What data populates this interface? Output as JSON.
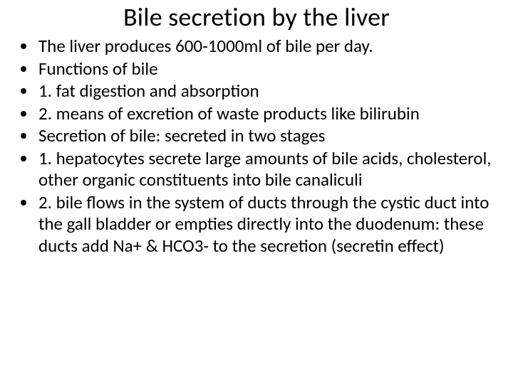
{
  "slide": {
    "title": "Bile secretion by the liver",
    "title_fontsize": 36,
    "body_fontsize": 25,
    "background_color": "#ffffff",
    "text_color": "#000000",
    "bullets": [
      "The liver produces 600-1000ml of bile per day.",
      "Functions of bile",
      "1. fat digestion and absorption",
      "2. means of excretion of waste products like bilirubin",
      "Secretion of bile: secreted in two stages",
      "1. hepatocytes secrete large amounts of bile acids, cholesterol, other organic constituents into bile canaliculi",
      "2. bile flows in the system of ducts through the cystic duct into the gall bladder or empties directly into the duodenum: these ducts add Na+ & HCO3- to the secretion (secretin effect)"
    ]
  }
}
